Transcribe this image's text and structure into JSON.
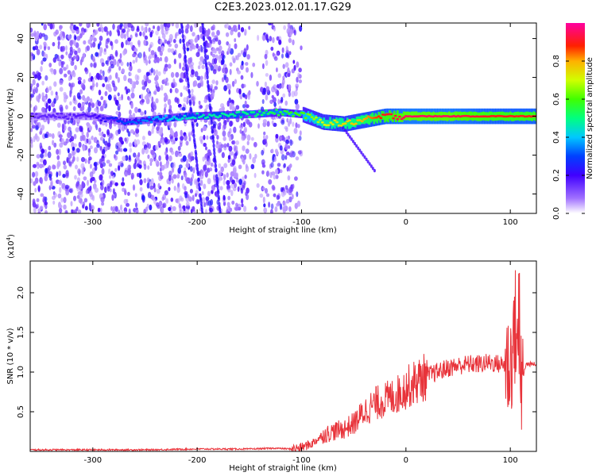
{
  "figure_title": "C2E3.2023.012.01.17.G29",
  "chart_data": [
    {
      "type": "heatmap",
      "xlabel": "Height of straight line (km)",
      "ylabel": "Frequency (Hz)",
      "xlim": [
        -360,
        125
      ],
      "ylim": [
        -50,
        48
      ],
      "x_ticks": [
        -300,
        -200,
        -100,
        0,
        100
      ],
      "x_tick_labels": [
        "-300",
        "-200",
        "-100",
        "0",
        "100"
      ],
      "y_ticks": [
        -40,
        -20,
        0,
        20,
        40
      ],
      "y_tick_labels": [
        "-40",
        "-20",
        "0",
        "20",
        "40"
      ],
      "grid": false,
      "colorbar": {
        "label": "Normalized spectral amplitude",
        "range": [
          0,
          1
        ],
        "ticks": [
          0.0,
          0.2,
          0.4,
          0.6,
          0.8
        ],
        "tick_labels": [
          "0.0",
          "0.2",
          "0.4",
          "0.6",
          "0.8"
        ],
        "colormap": [
          "#ffffff",
          "#8a2be2",
          "#0000ff",
          "#00c8ff",
          "#00ff00",
          "#ffff00",
          "#ff8000",
          "#ff0000",
          "#ff00a0"
        ]
      },
      "noise_region": {
        "x_range": [
          -360,
          -100
        ],
        "freq_range": [
          -50,
          48
        ]
      },
      "ridge": [
        {
          "x": -360,
          "freq": 0,
          "amp": 0.15
        },
        {
          "x": -300,
          "freq": 0,
          "amp": 0.18
        },
        {
          "x": -270,
          "freq": -3,
          "amp": 0.3
        },
        {
          "x": -210,
          "freq": 0,
          "amp": 0.45
        },
        {
          "x": -150,
          "freq": 1,
          "amp": 0.5
        },
        {
          "x": -120,
          "freq": 2,
          "amp": 0.55
        },
        {
          "x": -100,
          "freq": 1,
          "amp": 0.6
        },
        {
          "x": -80,
          "freq": -3,
          "amp": 0.7
        },
        {
          "x": -60,
          "freq": -4,
          "amp": 0.75
        },
        {
          "x": -40,
          "freq": -2,
          "amp": 0.8
        },
        {
          "x": -20,
          "freq": 0,
          "amp": 0.9
        },
        {
          "x": 0,
          "freq": 0,
          "amp": 0.95
        },
        {
          "x": 40,
          "freq": 0,
          "amp": 0.95
        },
        {
          "x": 80,
          "freq": 0,
          "amp": 0.9
        },
        {
          "x": 125,
          "freq": 0,
          "amp": 0.9
        }
      ]
    },
    {
      "type": "line",
      "xlabel": "Height of straight line (km)",
      "ylabel": "SNR (10 * v/v)",
      "y_multiplier": "(x10",
      "y_multiplier_exp": "4",
      "y_multiplier_close": ")",
      "xlim": [
        -360,
        125
      ],
      "ylim": [
        0,
        2.4
      ],
      "x_ticks": [
        -300,
        -200,
        -100,
        0,
        100
      ],
      "x_tick_labels": [
        "-300",
        "-200",
        "-100",
        "0",
        "100"
      ],
      "y_ticks": [
        0.5,
        1.0,
        1.5,
        2.0
      ],
      "y_tick_labels": [
        "0.5",
        "1.0",
        "1.5",
        "2.0"
      ],
      "grid": false,
      "series": [
        {
          "color": "#e8333a",
          "x": [
            -360,
            -300,
            -250,
            -200,
            -150,
            -125,
            -110,
            -100,
            -90,
            -80,
            -70,
            -60,
            -50,
            -40,
            -30,
            -20,
            -10,
            0,
            10,
            20,
            30,
            40,
            50,
            60,
            70,
            80,
            90,
            100,
            105,
            110,
            115,
            125
          ],
          "y": [
            0.02,
            0.02,
            0.02,
            0.03,
            0.03,
            0.04,
            0.03,
            0.05,
            0.1,
            0.2,
            0.25,
            0.28,
            0.35,
            0.5,
            0.6,
            0.65,
            0.7,
            0.8,
            0.88,
            0.95,
            1.0,
            1.05,
            1.08,
            1.1,
            1.1,
            1.12,
            1.1,
            1.08,
            1.6,
            0.8,
            1.1,
            1.1
          ]
        }
      ]
    }
  ]
}
